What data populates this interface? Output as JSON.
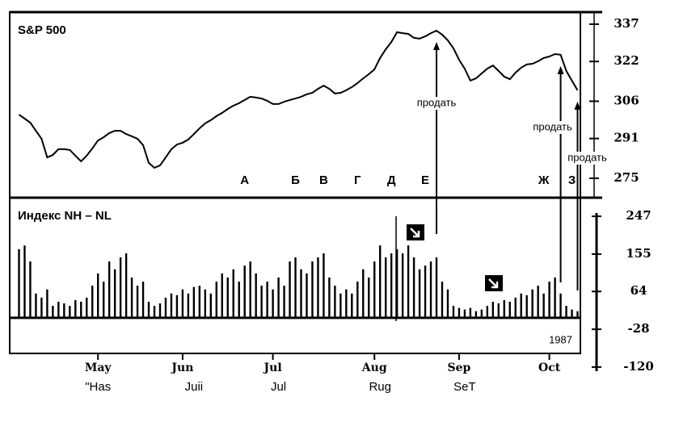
{
  "chart_data": [
    {
      "type": "line",
      "title": "S&P 500",
      "color": "#000000",
      "values": [
        300.6,
        299,
        297.4,
        294.1,
        290.9,
        283.4,
        284.4,
        286.7,
        286.7,
        286.4,
        284.1,
        281.8,
        284.1,
        287,
        290.2,
        291.5,
        293.2,
        294.1,
        294.1,
        292.8,
        291.9,
        290.9,
        288.3,
        281.2,
        279.2,
        280.2,
        283.4,
        286.7,
        288.6,
        289.3,
        290.6,
        292.8,
        295.1,
        297.1,
        298.4,
        300,
        301.3,
        302.9,
        304.2,
        305.2,
        306.5,
        307.8,
        307.5,
        307.1,
        306.2,
        304.9,
        304.9,
        305.8,
        306.5,
        307.1,
        307.8,
        308.8,
        309.4,
        311,
        312.3,
        311,
        309.1,
        309.4,
        310.4,
        311.7,
        313.3,
        315.2,
        316.9,
        318.8,
        323.4,
        326.9,
        329.9,
        333.8,
        333.4,
        333.1,
        331.5,
        331.2,
        332.1,
        333.4,
        334.4,
        332.8,
        330.5,
        327.3,
        322.7,
        319.1,
        314.3,
        315.2,
        317.2,
        319.1,
        320.4,
        318.2,
        315.9,
        314.9,
        317.5,
        319.5,
        320.8,
        321.1,
        322.1,
        323.4,
        324,
        325,
        324.7,
        318.2,
        314.3,
        310.4
      ],
      "ylim": [
        268,
        342
      ],
      "yticks": [
        337,
        322,
        306,
        291,
        275
      ],
      "letters": [
        {
          "text": "А",
          "index": 40
        },
        {
          "text": "Б",
          "index": 49
        },
        {
          "text": "В",
          "index": 54
        },
        {
          "text": "Г",
          "index": 60
        },
        {
          "text": "Д",
          "index": 66
        },
        {
          "text": "Е",
          "index": 72
        },
        {
          "text": "Ж",
          "index": 93
        },
        {
          "text": "З",
          "index": 98
        }
      ],
      "sell_signals": [
        {
          "text": "продать",
          "index": 74
        },
        {
          "text": "продать",
          "index": 96
        },
        {
          "text": "продать",
          "index": 99
        }
      ]
    },
    {
      "type": "bar",
      "title": "Индекс NH – NL",
      "color": "#000000",
      "year": "1987",
      "categories": [
        null,
        null,
        null,
        null,
        null,
        null,
        null,
        null,
        null,
        null,
        null,
        null,
        null,
        null,
        "May",
        null,
        null,
        null,
        null,
        null,
        null,
        null,
        null,
        null,
        null,
        null,
        null,
        null,
        null,
        "Jun",
        null,
        null,
        null,
        null,
        null,
        null,
        null,
        null,
        null,
        null,
        null,
        null,
        null,
        null,
        null,
        "Jul",
        null,
        null,
        null,
        null,
        null,
        null,
        null,
        null,
        null,
        null,
        null,
        null,
        null,
        null,
        null,
        null,
        null,
        "Aug",
        null,
        null,
        null,
        null,
        null,
        null,
        null,
        null,
        null,
        null,
        null,
        null,
        null,
        null,
        "Sep",
        null,
        null,
        null,
        null,
        null,
        null,
        null,
        null,
        null,
        null,
        null,
        null,
        null,
        null,
        null,
        "Oct",
        null,
        null,
        null,
        null,
        null
      ],
      "categories_secondary": [
        null,
        null,
        null,
        null,
        null,
        null,
        null,
        null,
        null,
        null,
        null,
        null,
        null,
        null,
        "\"Has",
        null,
        null,
        null,
        null,
        null,
        null,
        null,
        null,
        null,
        null,
        null,
        null,
        null,
        null,
        null,
        null,
        "Juii",
        null,
        null,
        null,
        null,
        null,
        null,
        null,
        null,
        null,
        null,
        null,
        null,
        null,
        null,
        "Jul",
        null,
        null,
        null,
        null,
        null,
        null,
        null,
        null,
        null,
        null,
        null,
        null,
        null,
        null,
        null,
        null,
        null,
        "Rug",
        null,
        null,
        null,
        null,
        null,
        null,
        null,
        null,
        null,
        null,
        null,
        null,
        null,
        null,
        "SeT",
        null,
        null,
        null,
        null,
        null,
        null,
        null,
        null,
        null,
        null,
        null,
        null,
        null,
        null,
        null,
        null,
        null,
        null,
        null,
        null
      ],
      "values": [
        167,
        176,
        137,
        59,
        49,
        69,
        29,
        39,
        35,
        29,
        43,
        39,
        49,
        78,
        108,
        88,
        137,
        118,
        147,
        157,
        98,
        78,
        88,
        39,
        29,
        35,
        49,
        59,
        55,
        69,
        59,
        75,
        78,
        69,
        59,
        88,
        108,
        98,
        118,
        88,
        127,
        137,
        108,
        78,
        88,
        69,
        98,
        78,
        137,
        147,
        118,
        108,
        137,
        147,
        157,
        98,
        78,
        59,
        69,
        59,
        88,
        118,
        98,
        137,
        176,
        147,
        157,
        167,
        157,
        176,
        147,
        118,
        127,
        137,
        147,
        88,
        69,
        29,
        24,
        20,
        24,
        16,
        20,
        29,
        39,
        35,
        43,
        39,
        49,
        59,
        55,
        69,
        78,
        59,
        88,
        98,
        59,
        29,
        20,
        16
      ],
      "ylim": [
        -130,
        255
      ],
      "yticks": [
        247,
        155,
        64,
        -28,
        -120
      ]
    }
  ]
}
